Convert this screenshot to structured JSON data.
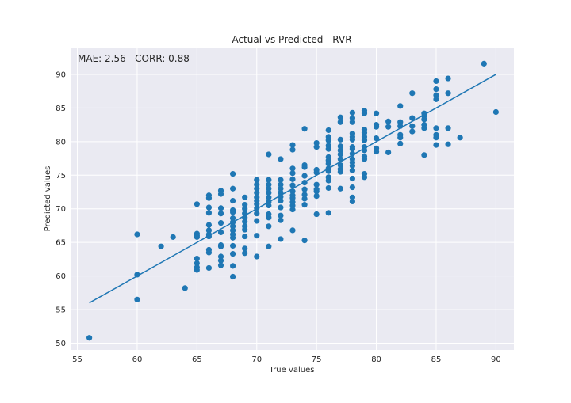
{
  "chart_data": {
    "type": "scatter",
    "title": "Actual vs Predicted - RVR",
    "xlabel": "True values",
    "ylabel": "Predicted values",
    "xlim": [
      54.5,
      91.5
    ],
    "ylim": [
      49,
      94
    ],
    "xticks": [
      55,
      60,
      65,
      70,
      75,
      80,
      85,
      90
    ],
    "yticks": [
      50,
      55,
      60,
      65,
      70,
      75,
      80,
      85,
      90
    ],
    "grid": true,
    "background": "#eaeaf2",
    "point_color": "#1f77b4",
    "line_color": "#1f77b4",
    "annotation": "MAE: 2.56   CORR: 0.88",
    "fit_line": {
      "x": [
        56,
        90
      ],
      "y": [
        56.0,
        90.0
      ]
    },
    "points": [
      [
        56,
        50.8
      ],
      [
        60,
        66.2
      ],
      [
        60,
        60.2
      ],
      [
        60,
        56.5
      ],
      [
        62,
        64.4
      ],
      [
        63,
        65.8
      ],
      [
        64,
        58.2
      ],
      [
        65,
        70.7
      ],
      [
        65,
        66.3
      ],
      [
        65,
        66.0
      ],
      [
        65,
        65.8
      ],
      [
        65,
        62.6
      ],
      [
        65,
        61.9
      ],
      [
        65,
        61.3
      ],
      [
        65,
        60.9
      ],
      [
        66,
        72.0
      ],
      [
        66,
        71.6
      ],
      [
        66,
        70.2
      ],
      [
        66,
        69.4
      ],
      [
        66,
        67.6
      ],
      [
        66,
        66.8
      ],
      [
        66,
        66.2
      ],
      [
        66,
        65.9
      ],
      [
        66,
        63.9
      ],
      [
        66,
        63.5
      ],
      [
        66,
        61.2
      ],
      [
        67,
        72.7
      ],
      [
        67,
        72.2
      ],
      [
        67,
        70.1
      ],
      [
        67,
        69.3
      ],
      [
        67,
        67.9
      ],
      [
        67,
        66.5
      ],
      [
        67,
        64.6
      ],
      [
        67,
        64.4
      ],
      [
        67,
        62.9
      ],
      [
        67,
        62.3
      ],
      [
        67,
        61.6
      ],
      [
        68,
        75.2
      ],
      [
        68,
        73.0
      ],
      [
        68,
        71.2
      ],
      [
        68,
        69.8
      ],
      [
        68,
        69.5
      ],
      [
        68,
        68.6
      ],
      [
        68,
        68.0
      ],
      [
        68,
        67.4
      ],
      [
        68,
        66.8
      ],
      [
        68,
        66.2
      ],
      [
        68,
        65.7
      ],
      [
        68,
        64.5
      ],
      [
        68,
        63.3
      ],
      [
        68,
        61.5
      ],
      [
        68,
        59.9
      ],
      [
        69,
        71.7
      ],
      [
        69,
        70.6
      ],
      [
        69,
        70.0
      ],
      [
        69,
        69.3
      ],
      [
        69,
        68.7
      ],
      [
        69,
        68.1
      ],
      [
        69,
        67.4
      ],
      [
        69,
        66.9
      ],
      [
        69,
        65.9
      ],
      [
        69,
        64.1
      ],
      [
        69,
        63.4
      ],
      [
        70,
        74.3
      ],
      [
        70,
        73.6
      ],
      [
        70,
        73.0
      ],
      [
        70,
        72.4
      ],
      [
        70,
        71.7
      ],
      [
        70,
        71.2
      ],
      [
        70,
        70.7
      ],
      [
        70,
        70.1
      ],
      [
        70,
        69.3
      ],
      [
        70,
        68.2
      ],
      [
        70,
        66.0
      ],
      [
        70,
        62.9
      ],
      [
        71,
        78.1
      ],
      [
        71,
        74.3
      ],
      [
        71,
        73.6
      ],
      [
        71,
        73.0
      ],
      [
        71,
        72.4
      ],
      [
        71,
        71.7
      ],
      [
        71,
        71.0
      ],
      [
        71,
        70.5
      ],
      [
        71,
        69.2
      ],
      [
        71,
        68.7
      ],
      [
        71,
        67.4
      ],
      [
        71,
        64.4
      ],
      [
        72,
        77.4
      ],
      [
        72,
        74.3
      ],
      [
        72,
        73.6
      ],
      [
        72,
        73.0
      ],
      [
        72,
        72.4
      ],
      [
        72,
        71.8
      ],
      [
        72,
        71.2
      ],
      [
        72,
        70.2
      ],
      [
        72,
        69.0
      ],
      [
        72,
        68.3
      ],
      [
        72,
        65.5
      ],
      [
        73,
        79.5
      ],
      [
        73,
        78.8
      ],
      [
        73,
        76.0
      ],
      [
        73,
        75.3
      ],
      [
        73,
        74.4
      ],
      [
        73,
        73.5
      ],
      [
        73,
        72.6
      ],
      [
        73,
        72.0
      ],
      [
        73,
        71.6
      ],
      [
        73,
        71.0
      ],
      [
        73,
        70.5
      ],
      [
        73,
        69.9
      ],
      [
        73,
        66.8
      ],
      [
        74,
        81.9
      ],
      [
        74,
        76.5
      ],
      [
        74,
        76.2
      ],
      [
        74,
        74.9
      ],
      [
        74,
        73.9
      ],
      [
        74,
        72.9
      ],
      [
        74,
        72.1
      ],
      [
        74,
        71.5
      ],
      [
        74,
        70.6
      ],
      [
        74,
        65.3
      ],
      [
        75,
        79.8
      ],
      [
        75,
        79.2
      ],
      [
        75,
        75.8
      ],
      [
        75,
        75.4
      ],
      [
        75,
        73.6
      ],
      [
        75,
        72.9
      ],
      [
        75,
        72.6
      ],
      [
        75,
        71.9
      ],
      [
        75,
        69.2
      ],
      [
        76,
        81.7
      ],
      [
        76,
        80.7
      ],
      [
        76,
        80.2
      ],
      [
        76,
        79.4
      ],
      [
        76,
        78.9
      ],
      [
        76,
        77.7
      ],
      [
        76,
        77.2
      ],
      [
        76,
        76.7
      ],
      [
        76,
        76.0
      ],
      [
        76,
        75.6
      ],
      [
        76,
        74.7
      ],
      [
        76,
        74.2
      ],
      [
        76,
        73.1
      ],
      [
        76,
        69.4
      ],
      [
        77,
        83.6
      ],
      [
        77,
        82.9
      ],
      [
        77,
        80.3
      ],
      [
        77,
        79.3
      ],
      [
        77,
        78.7
      ],
      [
        77,
        78.1
      ],
      [
        77,
        77.4
      ],
      [
        77,
        76.5
      ],
      [
        77,
        75.9
      ],
      [
        77,
        75.5
      ],
      [
        77,
        73.0
      ],
      [
        78,
        84.3
      ],
      [
        78,
        83.5
      ],
      [
        78,
        82.9
      ],
      [
        78,
        81.2
      ],
      [
        78,
        80.7
      ],
      [
        78,
        80.3
      ],
      [
        78,
        79.2
      ],
      [
        78,
        78.9
      ],
      [
        78,
        78.2
      ],
      [
        78,
        77.4
      ],
      [
        78,
        76.9
      ],
      [
        78,
        76.4
      ],
      [
        78,
        75.7
      ],
      [
        78,
        74.5
      ],
      [
        78,
        73.2
      ],
      [
        78,
        71.7
      ],
      [
        78,
        71.1
      ],
      [
        79,
        84.6
      ],
      [
        79,
        84.2
      ],
      [
        79,
        81.8
      ],
      [
        79,
        81.3
      ],
      [
        79,
        80.7
      ],
      [
        79,
        80.2
      ],
      [
        79,
        79.2
      ],
      [
        79,
        78.7
      ],
      [
        79,
        77.8
      ],
      [
        79,
        77.4
      ],
      [
        79,
        75.2
      ],
      [
        79,
        74.7
      ],
      [
        80,
        84.2
      ],
      [
        80,
        82.5
      ],
      [
        80,
        82.2
      ],
      [
        80,
        80.5
      ],
      [
        80,
        79.0
      ],
      [
        80,
        78.5
      ],
      [
        81,
        83.0
      ],
      [
        81,
        82.2
      ],
      [
        81,
        78.4
      ],
      [
        82,
        85.3
      ],
      [
        82,
        82.9
      ],
      [
        82,
        82.3
      ],
      [
        82,
        81.0
      ],
      [
        82,
        80.6
      ],
      [
        82,
        79.7
      ],
      [
        83,
        87.2
      ],
      [
        83,
        83.5
      ],
      [
        83,
        82.3
      ],
      [
        83,
        81.5
      ],
      [
        84,
        84.2
      ],
      [
        84,
        83.8
      ],
      [
        84,
        83.3
      ],
      [
        84,
        82.5
      ],
      [
        84,
        82.0
      ],
      [
        84,
        78.0
      ],
      [
        85,
        89.0
      ],
      [
        85,
        87.8
      ],
      [
        85,
        86.9
      ],
      [
        85,
        86.3
      ],
      [
        85,
        82.0
      ],
      [
        85,
        81.0
      ],
      [
        85,
        80.6
      ],
      [
        85,
        79.5
      ],
      [
        86,
        89.4
      ],
      [
        86,
        87.2
      ],
      [
        86,
        82.0
      ],
      [
        86,
        79.6
      ],
      [
        87,
        80.6
      ],
      [
        89,
        91.6
      ],
      [
        90,
        84.4
      ]
    ]
  }
}
